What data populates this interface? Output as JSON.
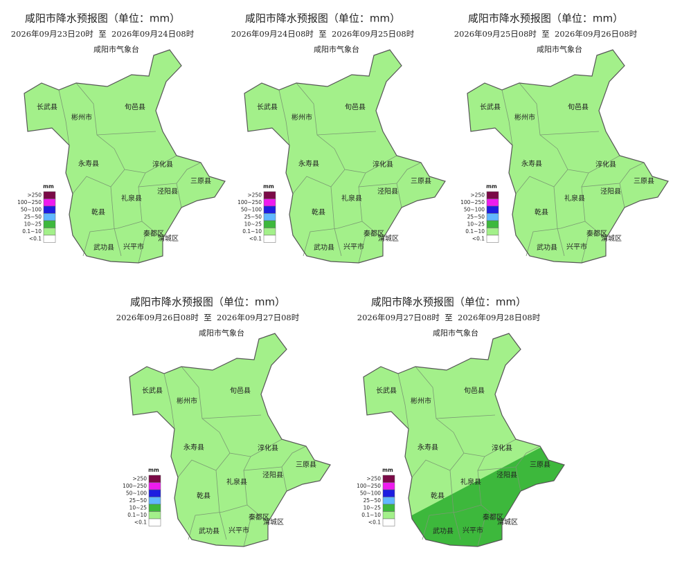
{
  "maps": [
    {
      "title": "咸阳市降水预报图（单位：mm）",
      "date_range": "2026年09月23日20时  至  2026年09月24日08时",
      "issuer": "咸阳市气象台"
    },
    {
      "title": "咸阳市降水预报图（单位：mm）",
      "date_range": "2026年09月24日08时  至  2026年09月25日08时",
      "issuer": "咸阳市气象台"
    },
    {
      "title": "咸阳市降水预报图（单位：mm）",
      "date_range": "2026年09月25日08时  至  2026年09月26日08时",
      "issuer": "咸阳市气象台"
    },
    {
      "title": "咸阳市降水预报图（单位：mm）",
      "date_range": "2026年09月26日08时  至  2026年09月27日08时",
      "issuer": "咸阳市气象台"
    },
    {
      "title": "咸阳市降水预报图（单位：mm）",
      "date_range": "2026年09月27日08时  至  2026年09月28日08时",
      "issuer": "咸阳市气象台"
    }
  ],
  "legend": {
    "unit": "mm",
    "items": [
      {
        "label": ">250",
        "color": "#7b0a47"
      },
      {
        "label": "100~250",
        "color": "#ee1cee"
      },
      {
        "label": "50~100",
        "color": "#1d1de0"
      },
      {
        "label": "25~50",
        "color": "#61b8ff"
      },
      {
        "label": "10~25",
        "color": "#3db83c"
      },
      {
        "label": "0.1~10",
        "color": "#a3f08a"
      },
      {
        "label": "<0.1",
        "color": "#ffffff"
      }
    ]
  },
  "counties": [
    "长武县",
    "彬州市",
    "旬邑县",
    "永寿县",
    "淳化县",
    "三原县",
    "泾阳县",
    "礼泉县",
    "乾县",
    "秦都区",
    "渭城区",
    "武功县",
    "兴平市"
  ]
}
